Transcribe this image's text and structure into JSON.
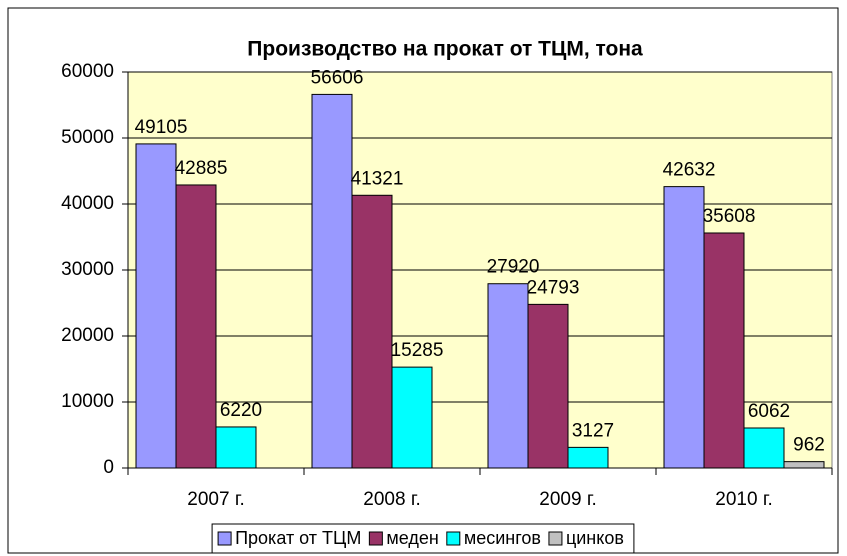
{
  "chart_data": {
    "type": "bar",
    "title": "Производство на прокат от ТЦМ, тона",
    "categories": [
      "2007 г.",
      "2008 г.",
      "2009 г.",
      "2010 г."
    ],
    "series": [
      {
        "name": "Прокат от ТЦМ",
        "color": "#9999ff",
        "values": [
          49105,
          56606,
          27920,
          42632
        ]
      },
      {
        "name": "меден",
        "color": "#993366",
        "values": [
          42885,
          41321,
          24793,
          35608
        ]
      },
      {
        "name": "месингов",
        "color": "#00ffff",
        "values": [
          6220,
          15285,
          3127,
          6062
        ]
      },
      {
        "name": "цинков",
        "color": "#c0c0c0",
        "values": [
          null,
          null,
          null,
          962
        ]
      }
    ],
    "ylim": [
      0,
      60000
    ],
    "yticks": [
      0,
      10000,
      20000,
      30000,
      40000,
      50000,
      60000
    ],
    "grid": true,
    "plot_background": "#ffffcc",
    "legend": "bottom"
  }
}
